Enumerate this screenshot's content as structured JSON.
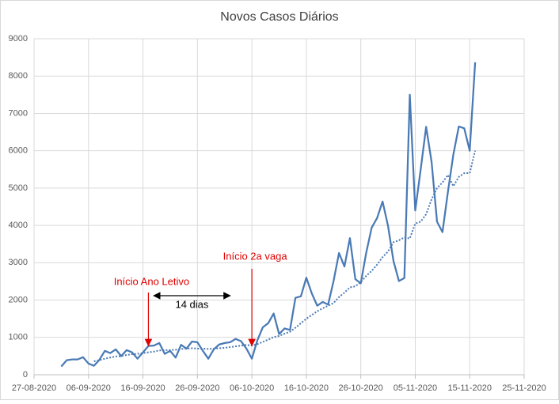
{
  "chart_data": {
    "type": "line",
    "title": "Novos Casos Diários",
    "x": [
      "2020-09-01",
      "2020-09-02",
      "2020-09-03",
      "2020-09-04",
      "2020-09-05",
      "2020-09-06",
      "2020-09-07",
      "2020-09-08",
      "2020-09-09",
      "2020-09-10",
      "2020-09-11",
      "2020-09-12",
      "2020-09-13",
      "2020-09-14",
      "2020-09-15",
      "2020-09-16",
      "2020-09-17",
      "2020-09-18",
      "2020-09-19",
      "2020-09-20",
      "2020-09-21",
      "2020-09-22",
      "2020-09-23",
      "2020-09-24",
      "2020-09-25",
      "2020-09-26",
      "2020-09-27",
      "2020-09-28",
      "2020-09-29",
      "2020-09-30",
      "2020-10-01",
      "2020-10-02",
      "2020-10-03",
      "2020-10-04",
      "2020-10-05",
      "2020-10-06",
      "2020-10-07",
      "2020-10-08",
      "2020-10-09",
      "2020-10-10",
      "2020-10-11",
      "2020-10-12",
      "2020-10-13",
      "2020-10-14",
      "2020-10-15",
      "2020-10-16",
      "2020-10-17",
      "2020-10-18",
      "2020-10-19",
      "2020-10-20",
      "2020-10-21",
      "2020-10-22",
      "2020-10-23",
      "2020-10-24",
      "2020-10-25",
      "2020-10-26",
      "2020-10-27",
      "2020-10-28",
      "2020-10-29",
      "2020-10-30",
      "2020-10-31",
      "2020-11-01",
      "2020-11-02",
      "2020-11-03",
      "2020-11-04",
      "2020-11-05",
      "2020-11-06",
      "2020-11-07",
      "2020-11-08",
      "2020-11-09",
      "2020-11-10",
      "2020-11-11",
      "2020-11-12",
      "2020-11-13",
      "2020-11-14",
      "2020-11-15",
      "2020-11-16"
    ],
    "series": [
      {
        "color": "#4a7ab5",
        "style": "solid",
        "values": [
          220,
          390,
          410,
          410,
          470,
          300,
          240,
          400,
          640,
          580,
          680,
          500,
          660,
          600,
          430,
          600,
          770,
          780,
          850,
          560,
          640,
          460,
          800,
          700,
          890,
          870,
          640,
          430,
          680,
          810,
          850,
          870,
          960,
          900,
          700,
          430,
          920,
          1270,
          1380,
          1640,
          1090,
          1240,
          1200,
          2060,
          2100,
          2600,
          2180,
          1850,
          1950,
          1880,
          2510,
          3260,
          2900,
          3660,
          2560,
          2450,
          3270,
          3940,
          4200,
          4640,
          3990,
          3050,
          2510,
          2590,
          7500,
          4400,
          5500,
          6640,
          5700,
          4100,
          3820,
          4900,
          5900,
          6650,
          6600,
          6000,
          8370
        ]
      },
      {
        "color": "#4a7ab5",
        "style": "dotted",
        "values": [
          null,
          null,
          null,
          null,
          null,
          null,
          360,
          390,
          430,
          460,
          490,
          500,
          530,
          550,
          560,
          580,
          600,
          620,
          650,
          660,
          660,
          670,
          690,
          700,
          710,
          700,
          700,
          690,
          700,
          710,
          720,
          740,
          760,
          780,
          800,
          780,
          820,
          880,
          940,
          1010,
          1040,
          1100,
          1150,
          1260,
          1380,
          1500,
          1600,
          1700,
          1780,
          1850,
          1920,
          2080,
          2200,
          2340,
          2370,
          2480,
          2650,
          2780,
          2950,
          3150,
          3300,
          3550,
          3600,
          3680,
          3650,
          4050,
          4100,
          4300,
          4700,
          5000,
          5150,
          5350,
          5050,
          5300,
          5400,
          5400,
          6000
        ]
      }
    ],
    "xlim": [
      "2020-08-27",
      "2020-11-25"
    ],
    "xticks": [
      {
        "value": "2020-08-27",
        "label": "27-08-2020"
      },
      {
        "value": "2020-09-06",
        "label": "06-09-2020"
      },
      {
        "value": "2020-09-16",
        "label": "16-09-2020"
      },
      {
        "value": "2020-09-26",
        "label": "26-09-2020"
      },
      {
        "value": "2020-10-06",
        "label": "06-10-2020"
      },
      {
        "value": "2020-10-16",
        "label": "16-10-2020"
      },
      {
        "value": "2020-10-26",
        "label": "26-10-2020"
      },
      {
        "value": "2020-11-05",
        "label": "05-11-2020"
      },
      {
        "value": "2020-11-15",
        "label": "15-11-2020"
      },
      {
        "value": "2020-11-25",
        "label": "25-11-2020"
      }
    ],
    "ylim": [
      0,
      9000
    ],
    "yticks": [
      0,
      1000,
      2000,
      3000,
      4000,
      5000,
      6000,
      7000,
      8000,
      9000
    ],
    "grid": true,
    "annotations": [
      {
        "text": "Início Ano Letivo",
        "x": "2020-09-17",
        "color": "#e00000"
      },
      {
        "text": "Início 2a vaga",
        "x": "2020-10-06",
        "color": "#e00000"
      },
      {
        "text": "14 dias",
        "x_start": "2020-09-18",
        "x_end": "2020-10-02",
        "color": "#000000"
      }
    ]
  }
}
